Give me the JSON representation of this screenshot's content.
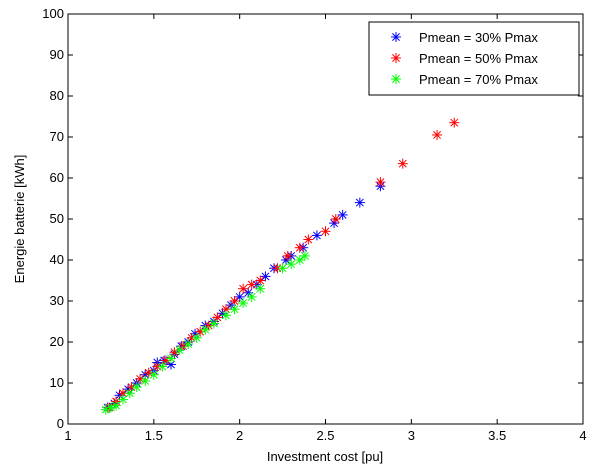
{
  "chart_data": {
    "type": "scatter",
    "title": "",
    "xlabel": "Investment cost [pu]",
    "ylabel": "Energie batterie [kWh]",
    "xlim": [
      1,
      4
    ],
    "ylim": [
      0,
      100
    ],
    "xticks": [
      1,
      1.5,
      2,
      2.5,
      3,
      3.5,
      4
    ],
    "yticks": [
      0,
      10,
      20,
      30,
      40,
      50,
      60,
      70,
      80,
      90,
      100
    ],
    "xtick_labels": [
      "1",
      "1.5",
      "2",
      "2.5",
      "3",
      "3.5",
      "4"
    ],
    "ytick_labels": [
      "0",
      "10",
      "20",
      "30",
      "40",
      "50",
      "60",
      "70",
      "80",
      "90",
      "100"
    ],
    "grid": false,
    "legend_position": "top-right",
    "marker": "asterisk",
    "series": [
      {
        "name": "Pmean = 30% Pmax",
        "color": "#0000ff",
        "points": [
          [
            1.23,
            4
          ],
          [
            1.27,
            5
          ],
          [
            1.3,
            7
          ],
          [
            1.35,
            8.5
          ],
          [
            1.4,
            10
          ],
          [
            1.45,
            12
          ],
          [
            1.5,
            13
          ],
          [
            1.52,
            15
          ],
          [
            1.56,
            15.5
          ],
          [
            1.6,
            14.5
          ],
          [
            1.62,
            17
          ],
          [
            1.66,
            19
          ],
          [
            1.7,
            20
          ],
          [
            1.74,
            22
          ],
          [
            1.8,
            24
          ],
          [
            1.85,
            25
          ],
          [
            1.9,
            27
          ],
          [
            1.95,
            29
          ],
          [
            2.0,
            31
          ],
          [
            2.05,
            32
          ],
          [
            2.1,
            34
          ],
          [
            2.15,
            36
          ],
          [
            2.2,
            38
          ],
          [
            2.27,
            40
          ],
          [
            2.3,
            41
          ],
          [
            2.37,
            43
          ],
          [
            2.45,
            46
          ],
          [
            2.55,
            49
          ],
          [
            2.6,
            51
          ],
          [
            2.7,
            54
          ],
          [
            2.82,
            58
          ]
        ]
      },
      {
        "name": "Pmean = 50% Pmax",
        "color": "#ff0000",
        "points": [
          [
            1.24,
            4
          ],
          [
            1.28,
            5.5
          ],
          [
            1.32,
            7.5
          ],
          [
            1.37,
            9
          ],
          [
            1.42,
            11
          ],
          [
            1.47,
            12.5
          ],
          [
            1.52,
            14
          ],
          [
            1.57,
            15.5
          ],
          [
            1.62,
            17.5
          ],
          [
            1.67,
            19
          ],
          [
            1.72,
            21
          ],
          [
            1.77,
            22.5
          ],
          [
            1.82,
            24
          ],
          [
            1.87,
            26
          ],
          [
            1.92,
            28
          ],
          [
            1.97,
            30
          ],
          [
            2.02,
            33
          ],
          [
            2.07,
            34
          ],
          [
            2.12,
            35
          ],
          [
            2.22,
            38
          ],
          [
            2.28,
            41
          ],
          [
            2.35,
            43
          ],
          [
            2.4,
            45
          ],
          [
            2.5,
            47
          ],
          [
            2.56,
            50
          ],
          [
            2.82,
            59
          ],
          [
            2.95,
            63.5
          ],
          [
            3.15,
            70.5
          ],
          [
            3.25,
            73.5
          ]
        ]
      },
      {
        "name": "Pmean = 70% Pmax",
        "color": "#00ff00",
        "points": [
          [
            1.22,
            3.5
          ],
          [
            1.25,
            4
          ],
          [
            1.28,
            4.5
          ],
          [
            1.32,
            6
          ],
          [
            1.36,
            7.5
          ],
          [
            1.4,
            9
          ],
          [
            1.45,
            10.5
          ],
          [
            1.5,
            12
          ],
          [
            1.55,
            14
          ],
          [
            1.6,
            16
          ],
          [
            1.65,
            18
          ],
          [
            1.7,
            19.5
          ],
          [
            1.75,
            21
          ],
          [
            1.8,
            23
          ],
          [
            1.85,
            24.5
          ],
          [
            1.92,
            26.5
          ],
          [
            1.97,
            28
          ],
          [
            2.02,
            29.5
          ],
          [
            2.07,
            31
          ],
          [
            2.12,
            33
          ],
          [
            2.25,
            38
          ],
          [
            2.3,
            39
          ],
          [
            2.35,
            40
          ],
          [
            2.38,
            41
          ]
        ]
      }
    ]
  }
}
